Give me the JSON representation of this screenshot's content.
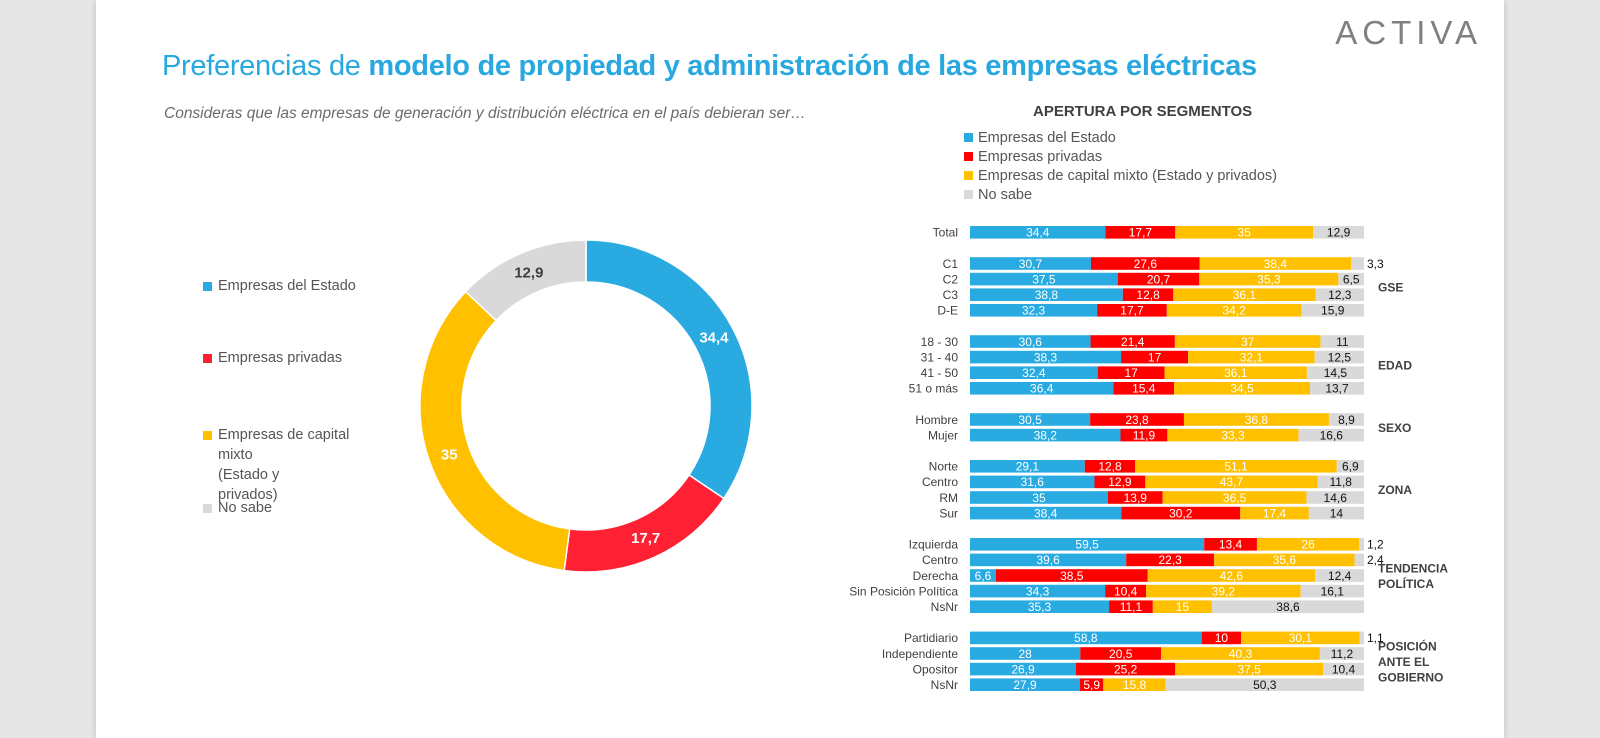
{
  "brand": {
    "logo_text": "ACTIVA"
  },
  "header": {
    "title_plain": "Preferencias de",
    "title_bold": "modelo de propiedad y administración de las empresas eléctricas",
    "subtitle": "Consideras que las empresas de generación y distribución eléctrica en el país debieran ser…"
  },
  "colors": {
    "estado": "#29abe2",
    "privadas": "#ff0000",
    "mixto": "#ffc000",
    "nosabe": "#d9d9d9",
    "title": "#29a8e0"
  },
  "chart_data": [
    {
      "type": "pie",
      "donut": true,
      "categories": [
        "Empresas del Estado",
        "Empresas privadas",
        "Empresas de capital mixto (Estado y privados)",
        "No sabe"
      ],
      "legend_lines": [
        [
          "Empresas del Estado"
        ],
        [
          "Empresas privadas"
        ],
        [
          "Empresas de capital mixto",
          "(Estado y",
          "privados)"
        ],
        [
          "No sabe"
        ]
      ],
      "values": [
        34.4,
        17.7,
        35,
        12.9
      ],
      "labels": [
        "34,4",
        "17,7",
        "35",
        "12,9"
      ],
      "colors": [
        "#29abe2",
        "#ff2033",
        "#ffc000",
        "#d9d9d9"
      ],
      "legend_placement": "left"
    },
    {
      "type": "bar",
      "orientation": "horizontal",
      "stacked": true,
      "title": "APERTURA POR SEGMENTOS",
      "series_names": [
        "Empresas del Estado",
        "Empresas privadas",
        "Empresas de capital mixto (Estado y privados)",
        "No sabe"
      ],
      "series_colors": [
        "#29abe2",
        "#ff0000",
        "#ffc000",
        "#d9d9d9"
      ],
      "legend_placement": "top",
      "groups": [
        {
          "name_lines": [],
          "rows": [
            {
              "label": "Total",
              "values": [
                34.4,
                17.7,
                35,
                12.9
              ],
              "labels": [
                "34,4",
                "17,7",
                "35",
                "12,9"
              ]
            }
          ]
        },
        {
          "name_lines": [
            "GSE"
          ],
          "rows": [
            {
              "label": "C1",
              "values": [
                30.7,
                27.6,
                38.4,
                3.3
              ],
              "labels": [
                "30,7",
                "27,6",
                "38,4",
                "3,3"
              ]
            },
            {
              "label": "C2",
              "values": [
                37.5,
                20.7,
                35.3,
                6.5
              ],
              "labels": [
                "37,5",
                "20,7",
                "35,3",
                "6,5"
              ]
            },
            {
              "label": "C3",
              "values": [
                38.8,
                12.8,
                36.1,
                12.3
              ],
              "labels": [
                "38,8",
                "12,8",
                "36,1",
                "12,3"
              ]
            },
            {
              "label": "D-E",
              "values": [
                32.3,
                17.7,
                34.2,
                15.9
              ],
              "labels": [
                "32,3",
                "17,7",
                "34,2",
                "15,9"
              ]
            }
          ]
        },
        {
          "name_lines": [
            "EDAD"
          ],
          "rows": [
            {
              "label": "18 - 30",
              "values": [
                30.6,
                21.4,
                37,
                11
              ],
              "labels": [
                "30,6",
                "21,4",
                "37",
                "11"
              ]
            },
            {
              "label": "31 - 40",
              "values": [
                38.3,
                17,
                32.1,
                12.5
              ],
              "labels": [
                "38,3",
                "17",
                "32,1",
                "12,5"
              ]
            },
            {
              "label": "41 - 50",
              "values": [
                32.4,
                17,
                36.1,
                14.5
              ],
              "labels": [
                "32,4",
                "17",
                "36,1",
                "14,5"
              ]
            },
            {
              "label": "51 o más",
              "values": [
                36.4,
                15.4,
                34.5,
                13.7
              ],
              "labels": [
                "36,4",
                "15,4",
                "34,5",
                "13,7"
              ]
            }
          ]
        },
        {
          "name_lines": [
            "SEXO"
          ],
          "rows": [
            {
              "label": "Hombre",
              "values": [
                30.5,
                23.8,
                36.8,
                8.9
              ],
              "labels": [
                "30,5",
                "23,8",
                "36,8",
                "8,9"
              ]
            },
            {
              "label": "Mujer",
              "values": [
                38.2,
                11.9,
                33.3,
                16.6
              ],
              "labels": [
                "38,2",
                "11,9",
                "33,3",
                "16,6"
              ]
            }
          ]
        },
        {
          "name_lines": [
            "ZONA"
          ],
          "rows": [
            {
              "label": "Norte",
              "values": [
                29.1,
                12.8,
                51.1,
                6.9
              ],
              "labels": [
                "29,1",
                "12,8",
                "51,1",
                "6,9"
              ]
            },
            {
              "label": "Centro",
              "values": [
                31.6,
                12.9,
                43.7,
                11.8
              ],
              "labels": [
                "31,6",
                "12,9",
                "43,7",
                "11,8"
              ]
            },
            {
              "label": "RM",
              "values": [
                35,
                13.9,
                36.5,
                14.6
              ],
              "labels": [
                "35",
                "13,9",
                "36,5",
                "14,6"
              ]
            },
            {
              "label": "Sur",
              "values": [
                38.4,
                30.2,
                17.4,
                14
              ],
              "labels": [
                "38,4",
                "30,2",
                "17,4",
                "14"
              ]
            }
          ]
        },
        {
          "name_lines": [
            "TENDENCIA",
            "POLÍTICA"
          ],
          "rows": [
            {
              "label": "Izquierda",
              "values": [
                59.5,
                13.4,
                26,
                1.2
              ],
              "labels": [
                "59,5",
                "13,4",
                "26",
                "1,2"
              ]
            },
            {
              "label": "Centro",
              "values": [
                39.6,
                22.3,
                35.6,
                2.4
              ],
              "labels": [
                "39,6",
                "22,3",
                "35,6",
                "2,4"
              ]
            },
            {
              "label": "Derecha",
              "values": [
                6.6,
                38.5,
                42.6,
                12.4
              ],
              "labels": [
                "6,6",
                "38,5",
                "42,6",
                "12,4"
              ]
            },
            {
              "label": "Sin Posición Política",
              "values": [
                34.3,
                10.4,
                39.2,
                16.1
              ],
              "labels": [
                "34,3",
                "10,4",
                "39,2",
                "16,1"
              ]
            },
            {
              "label": "NsNr",
              "values": [
                35.3,
                11.1,
                15,
                38.6
              ],
              "labels": [
                "35,3",
                "11,1",
                "15",
                "38,6"
              ]
            }
          ]
        },
        {
          "name_lines": [
            "POSICIÓN",
            "ANTE EL",
            "GOBIERNO"
          ],
          "rows": [
            {
              "label": "Partidiario",
              "values": [
                58.8,
                10,
                30.1,
                1.1
              ],
              "labels": [
                "58,8",
                "10",
                "30,1",
                "1,1"
              ]
            },
            {
              "label": "Independiente",
              "values": [
                28,
                20.5,
                40.3,
                11.2
              ],
              "labels": [
                "28",
                "20,5",
                "40,3",
                "11,2"
              ]
            },
            {
              "label": "Opositor",
              "values": [
                26.9,
                25.2,
                37.5,
                10.4
              ],
              "labels": [
                "26,9",
                "25,2",
                "37,5",
                "10,4"
              ]
            },
            {
              "label": "NsNr",
              "values": [
                27.9,
                5.9,
                15.8,
                50.3
              ],
              "labels": [
                "27,9",
                "5,9",
                "15,8",
                "50,3"
              ]
            }
          ]
        }
      ]
    }
  ]
}
